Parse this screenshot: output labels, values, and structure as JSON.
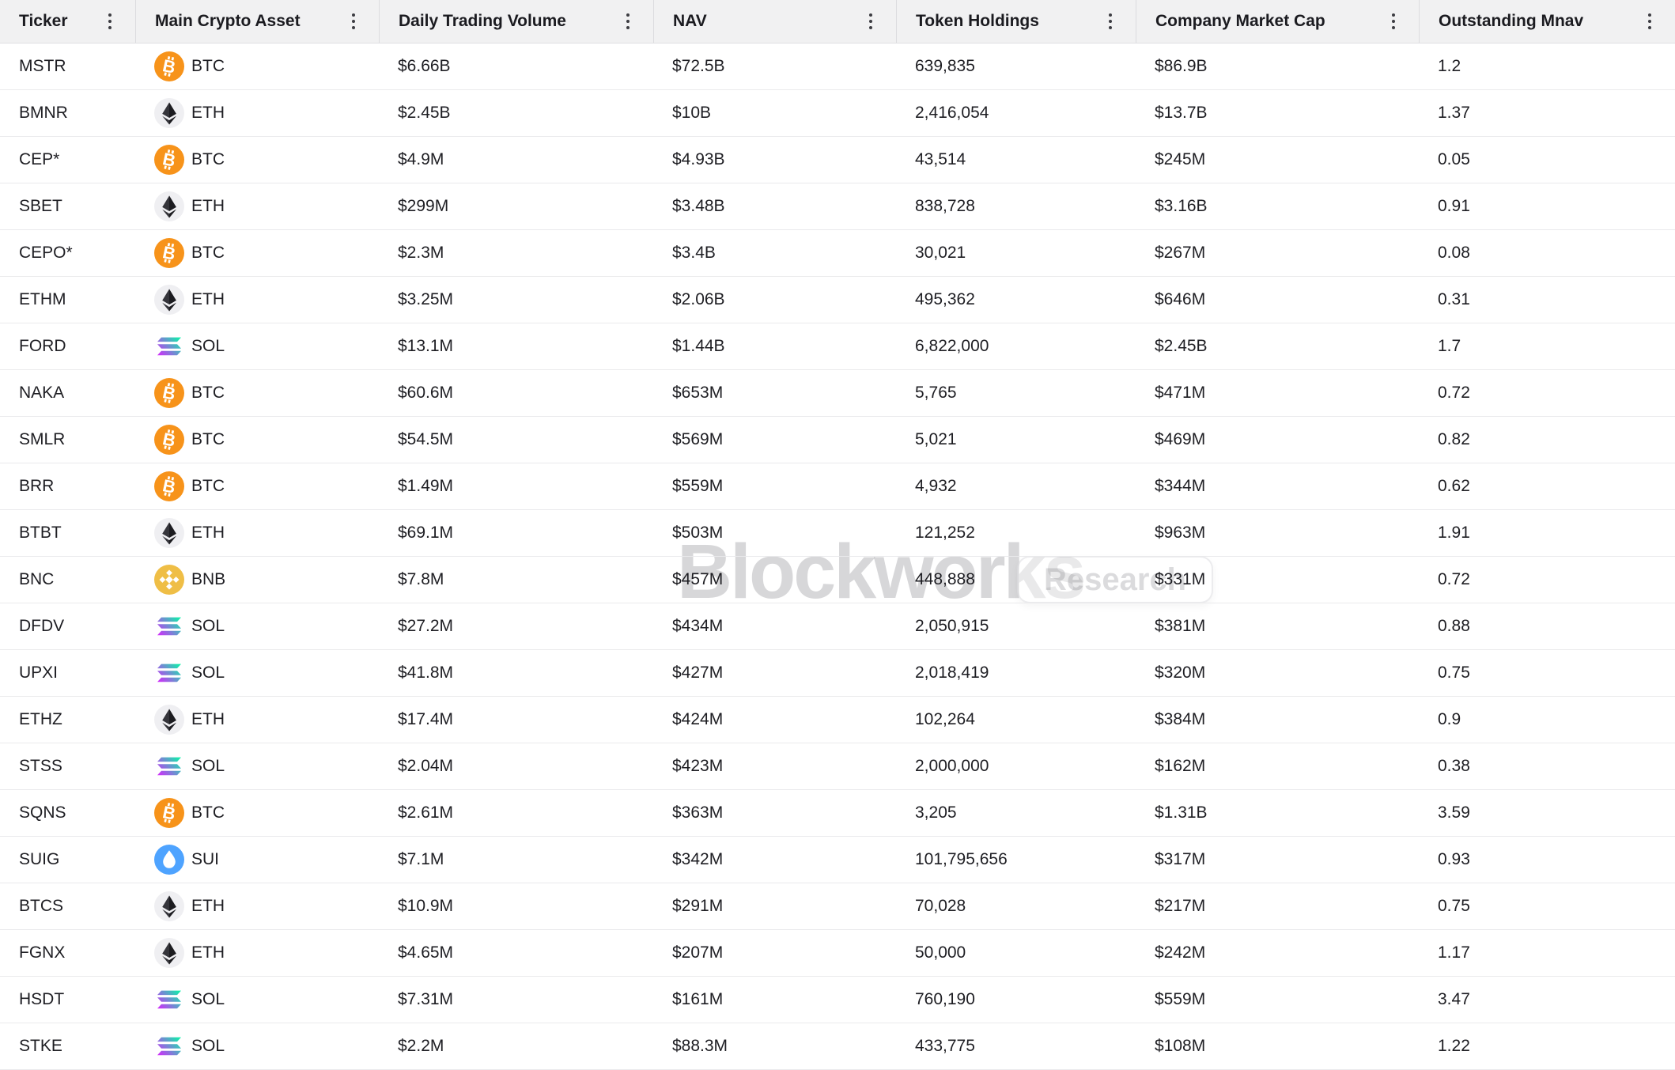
{
  "watermark": {
    "brand": "Blockworks",
    "badge": "Research"
  },
  "colors": {
    "header_bg": "#F1F1F2",
    "header_text": "#1B1B20",
    "body_text": "#1E1E23",
    "row_border": "#EAEAEC",
    "header_border": "#DFDFE2",
    "kebab_dot": "#3C3C42",
    "watermark_gray": "#D2D2D6"
  },
  "assets": {
    "BTC": {
      "color": "#F7931A"
    },
    "ETH": {
      "color": "#EFEFF2",
      "glyph": "#35353B",
      "glyph_dark": "#1C1C20"
    },
    "SOL": {
      "from": "#DC1FFF",
      "to": "#00FFA3"
    },
    "BNB": {
      "color": "#EFBE46"
    },
    "SUI": {
      "color": "#4EA3FF"
    }
  },
  "table": {
    "columns": [
      {
        "key": "ticker",
        "label": "Ticker"
      },
      {
        "key": "asset",
        "label": "Main Crypto Asset"
      },
      {
        "key": "volume",
        "label": "Daily Trading Volume"
      },
      {
        "key": "nav",
        "label": "NAV"
      },
      {
        "key": "holdings",
        "label": "Token Holdings"
      },
      {
        "key": "market_cap",
        "label": "Company Market Cap"
      },
      {
        "key": "mnav",
        "label": "Outstanding Mnav"
      }
    ],
    "rows": [
      {
        "ticker": "MSTR",
        "asset": "BTC",
        "volume": "$6.66B",
        "nav": "$72.5B",
        "holdings": "639,835",
        "market_cap": "$86.9B",
        "mnav": "1.2"
      },
      {
        "ticker": "BMNR",
        "asset": "ETH",
        "volume": "$2.45B",
        "nav": "$10B",
        "holdings": "2,416,054",
        "market_cap": "$13.7B",
        "mnav": "1.37"
      },
      {
        "ticker": "CEP*",
        "asset": "BTC",
        "volume": "$4.9M",
        "nav": "$4.93B",
        "holdings": "43,514",
        "market_cap": "$245M",
        "mnav": "0.05"
      },
      {
        "ticker": "SBET",
        "asset": "ETH",
        "volume": "$299M",
        "nav": "$3.48B",
        "holdings": "838,728",
        "market_cap": "$3.16B",
        "mnav": "0.91"
      },
      {
        "ticker": "CEPO*",
        "asset": "BTC",
        "volume": "$2.3M",
        "nav": "$3.4B",
        "holdings": "30,021",
        "market_cap": "$267M",
        "mnav": "0.08"
      },
      {
        "ticker": "ETHM",
        "asset": "ETH",
        "volume": "$3.25M",
        "nav": "$2.06B",
        "holdings": "495,362",
        "market_cap": "$646M",
        "mnav": "0.31"
      },
      {
        "ticker": "FORD",
        "asset": "SOL",
        "volume": "$13.1M",
        "nav": "$1.44B",
        "holdings": "6,822,000",
        "market_cap": "$2.45B",
        "mnav": "1.7"
      },
      {
        "ticker": "NAKA",
        "asset": "BTC",
        "volume": "$60.6M",
        "nav": "$653M",
        "holdings": "5,765",
        "market_cap": "$471M",
        "mnav": "0.72"
      },
      {
        "ticker": "SMLR",
        "asset": "BTC",
        "volume": "$54.5M",
        "nav": "$569M",
        "holdings": "5,021",
        "market_cap": "$469M",
        "mnav": "0.82"
      },
      {
        "ticker": "BRR",
        "asset": "BTC",
        "volume": "$1.49M",
        "nav": "$559M",
        "holdings": "4,932",
        "market_cap": "$344M",
        "mnav": "0.62"
      },
      {
        "ticker": "BTBT",
        "asset": "ETH",
        "volume": "$69.1M",
        "nav": "$503M",
        "holdings": "121,252",
        "market_cap": "$963M",
        "mnav": "1.91"
      },
      {
        "ticker": "BNC",
        "asset": "BNB",
        "volume": "$7.8M",
        "nav": "$457M",
        "holdings": "448,888",
        "market_cap": "$331M",
        "mnav": "0.72"
      },
      {
        "ticker": "DFDV",
        "asset": "SOL",
        "volume": "$27.2M",
        "nav": "$434M",
        "holdings": "2,050,915",
        "market_cap": "$381M",
        "mnav": "0.88"
      },
      {
        "ticker": "UPXI",
        "asset": "SOL",
        "volume": "$41.8M",
        "nav": "$427M",
        "holdings": "2,018,419",
        "market_cap": "$320M",
        "mnav": "0.75"
      },
      {
        "ticker": "ETHZ",
        "asset": "ETH",
        "volume": "$17.4M",
        "nav": "$424M",
        "holdings": "102,264",
        "market_cap": "$384M",
        "mnav": "0.9"
      },
      {
        "ticker": "STSS",
        "asset": "SOL",
        "volume": "$2.04M",
        "nav": "$423M",
        "holdings": "2,000,000",
        "market_cap": "$162M",
        "mnav": "0.38"
      },
      {
        "ticker": "SQNS",
        "asset": "BTC",
        "volume": "$2.61M",
        "nav": "$363M",
        "holdings": "3,205",
        "market_cap": "$1.31B",
        "mnav": "3.59"
      },
      {
        "ticker": "SUIG",
        "asset": "SUI",
        "volume": "$7.1M",
        "nav": "$342M",
        "holdings": "101,795,656",
        "market_cap": "$317M",
        "mnav": "0.93"
      },
      {
        "ticker": "BTCS",
        "asset": "ETH",
        "volume": "$10.9M",
        "nav": "$291M",
        "holdings": "70,028",
        "market_cap": "$217M",
        "mnav": "0.75"
      },
      {
        "ticker": "FGNX",
        "asset": "ETH",
        "volume": "$4.65M",
        "nav": "$207M",
        "holdings": "50,000",
        "market_cap": "$242M",
        "mnav": "1.17"
      },
      {
        "ticker": "HSDT",
        "asset": "SOL",
        "volume": "$7.31M",
        "nav": "$161M",
        "holdings": "760,190",
        "market_cap": "$559M",
        "mnav": "3.47"
      },
      {
        "ticker": "STKE",
        "asset": "SOL",
        "volume": "$2.2M",
        "nav": "$88.3M",
        "holdings": "433,775",
        "market_cap": "$108M",
        "mnav": "1.22"
      }
    ]
  }
}
